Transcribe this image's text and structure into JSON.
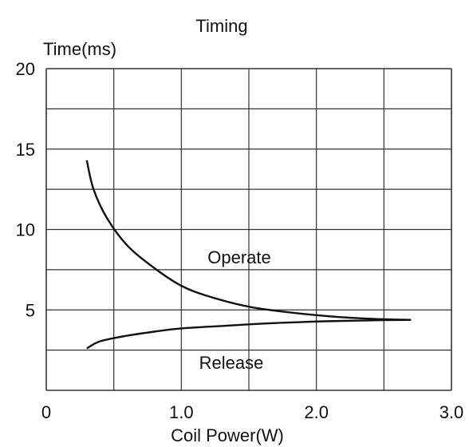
{
  "chart_data": {
    "type": "line",
    "title": "Timing",
    "xlabel": "Coil Power(W)",
    "ylabel": "Time(ms)",
    "xlim": [
      0,
      3.0
    ],
    "ylim": [
      0,
      20
    ],
    "x_tick_labels": [
      "0",
      "1.0",
      "2.0",
      "3.0"
    ],
    "x_ticks": [
      0,
      1.0,
      2.0,
      3.0
    ],
    "y_tick_labels": [
      "5",
      "10",
      "15",
      "20"
    ],
    "y_ticks": [
      5,
      10,
      15,
      20
    ],
    "grid": true,
    "series": [
      {
        "name": "Operate",
        "points": [
          [
            0.3,
            14.3
          ],
          [
            0.35,
            12.5
          ],
          [
            0.45,
            10.7
          ],
          [
            0.6,
            9.0
          ],
          [
            0.8,
            7.6
          ],
          [
            1.0,
            6.5
          ],
          [
            1.2,
            5.85
          ],
          [
            1.5,
            5.2
          ],
          [
            1.8,
            4.85
          ],
          [
            2.1,
            4.6
          ],
          [
            2.4,
            4.45
          ],
          [
            2.7,
            4.38
          ]
        ]
      },
      {
        "name": "Release",
        "points": [
          [
            0.3,
            2.6
          ],
          [
            0.4,
            3.05
          ],
          [
            0.6,
            3.4
          ],
          [
            0.8,
            3.65
          ],
          [
            1.0,
            3.85
          ],
          [
            1.3,
            4.0
          ],
          [
            1.6,
            4.15
          ],
          [
            1.9,
            4.25
          ],
          [
            2.2,
            4.32
          ],
          [
            2.5,
            4.36
          ],
          [
            2.7,
            4.38
          ]
        ]
      }
    ],
    "annotations": [
      "Operate",
      "Release"
    ],
    "colors": {
      "line": "#111111",
      "grid": "#333333",
      "background": "#ffffff"
    }
  }
}
